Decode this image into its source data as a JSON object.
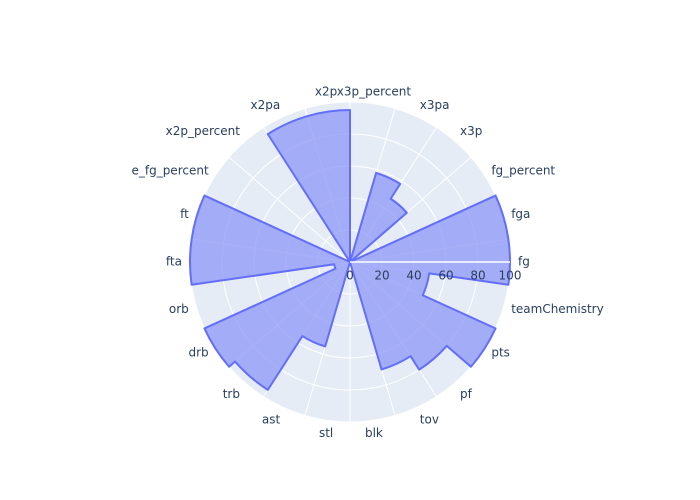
{
  "chart_data": {
    "type": "polar-area",
    "radial_range": [
      0,
      100
    ],
    "radial_ticks": [
      0,
      20,
      40,
      60,
      80,
      100
    ],
    "grid": true,
    "colors": {
      "background": "#e5ecf6",
      "grid": "#ffffff",
      "fill": "#8c97f5",
      "line": "#636efa"
    },
    "categories": [
      "fg",
      "fga",
      "fg_percent",
      "x3p",
      "x3pa",
      "x3p_percent",
      "x2p",
      "x2pa",
      "x2p_percent",
      "e_fg_percent",
      "ft",
      "fta",
      "orb",
      "drb",
      "trb",
      "ast",
      "stl",
      "blk",
      "tov",
      "pf",
      "pts",
      "teamChemistry"
    ],
    "series": [
      {
        "values": [
          100,
          100,
          0,
          47,
          58,
          0,
          95,
          95,
          0,
          0,
          100,
          100,
          10,
          100,
          95,
          55,
          0,
          0,
          70,
          80,
          100,
          50
        ]
      }
    ]
  }
}
